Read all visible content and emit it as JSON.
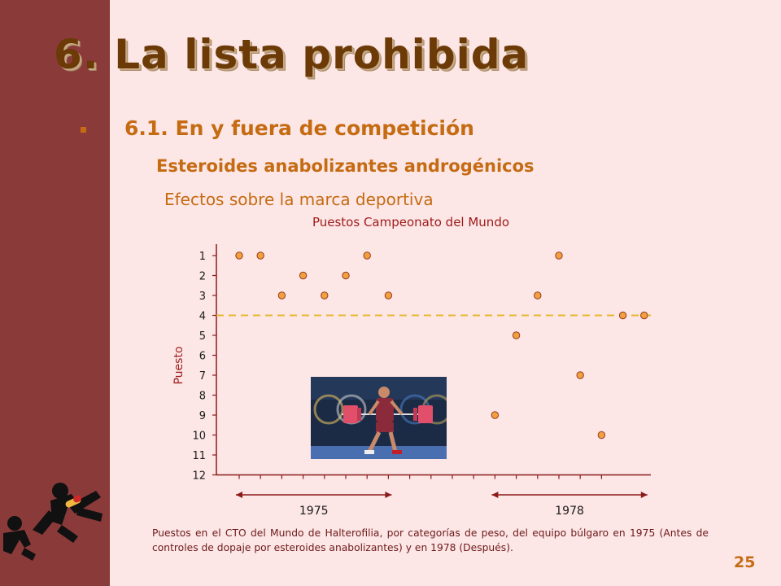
{
  "slide": {
    "title": "6. La lista prohibida",
    "subtitle": "6.1. En y fuera de competición",
    "subsubtitle": "Esteroides anabolizantes androgénicos",
    "effects_heading": "Efectos sobre la marca deportiva",
    "caption": "Puestos en el CTO del Mundo de Halterofilia, por categorías de peso, del equipo búlgaro en 1975 (Antes de controles de dopaje por esteroides anabolizantes) y en 1978 (Después).",
    "page_number": "25"
  },
  "chart_data": {
    "type": "scatter",
    "title": "Puestos Campeonato del Mundo",
    "ylabel": "Puesto",
    "ylim": [
      1,
      12
    ],
    "y_inverted": true,
    "yticks": [
      "1",
      "2",
      "3",
      "4",
      "5",
      "6",
      "7",
      "8",
      "9",
      "10",
      "11",
      "12"
    ],
    "groups": [
      "1975",
      "1978"
    ],
    "series": [
      {
        "group": "1975",
        "values": [
          1,
          1,
          3,
          2,
          3,
          2,
          1,
          3
        ]
      },
      {
        "group": "1978",
        "values": [
          9,
          5,
          3,
          1,
          7,
          10,
          4,
          4
        ]
      }
    ],
    "reference_line": {
      "value": 4,
      "style": "dashed"
    },
    "colors": {
      "point": "#f0a040",
      "point_stroke": "#9a3a1a",
      "reference": "#e8b830",
      "axis": "#8b1a1a"
    }
  }
}
